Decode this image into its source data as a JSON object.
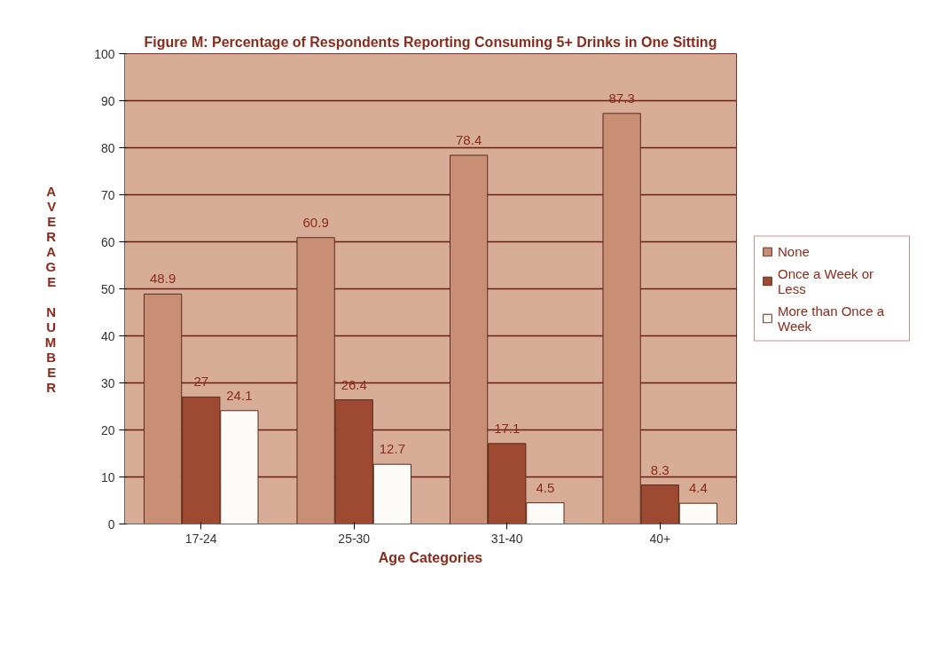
{
  "chart_data": {
    "type": "bar",
    "title": "Figure M: Percentage of Respondents Reporting Consuming 5+ Drinks in One Sitting",
    "xlabel": "Age Categories",
    "ylabel": "AVERAGE NUMBER",
    "categories": [
      "17-24",
      "25-30",
      "31-40",
      "40+"
    ],
    "series": [
      {
        "name": "None",
        "color": "#c98f75",
        "values": [
          48.9,
          60.9,
          78.4,
          87.3
        ]
      },
      {
        "name": "Once a Week or Less",
        "color": "#9e4a33",
        "values": [
          27,
          26.4,
          17.1,
          8.3
        ]
      },
      {
        "name": "More than Once a Week",
        "color": "#fdfbf8",
        "values": [
          24.1,
          12.7,
          4.5,
          4.4
        ]
      }
    ],
    "ylim": [
      0,
      100
    ],
    "yticks": [
      0,
      10,
      20,
      30,
      40,
      50,
      60,
      70,
      80,
      90,
      100
    ],
    "grid": "y",
    "legend": "right",
    "data_labels": true
  }
}
